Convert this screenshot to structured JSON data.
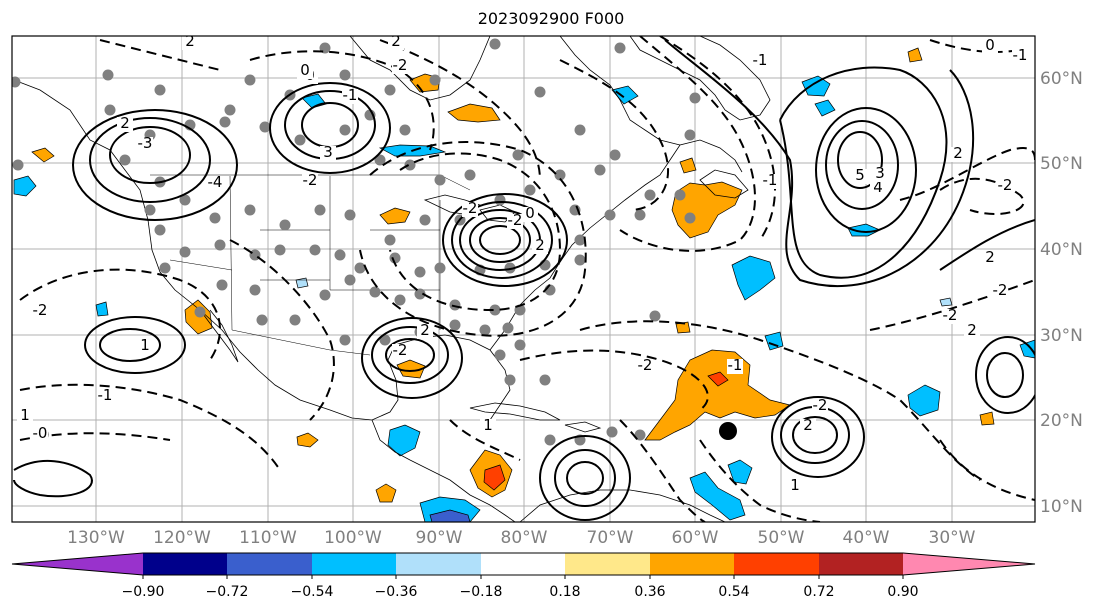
{
  "title": "2023092900 F000",
  "longitude_labels": [
    "130°W",
    "120°W",
    "110°W",
    "100°W",
    "90°W",
    "80°W",
    "70°W",
    "60°W",
    "50°W",
    "40°W",
    "30°W"
  ],
  "latitude_labels": [
    "60°N",
    "50°N",
    "40°N",
    "30°N",
    "20°N",
    "10°N"
  ],
  "colorbar": {
    "tick_labels": [
      "−0.90",
      "−0.72",
      "−0.54",
      "−0.36",
      "−0.18",
      "0.18",
      "0.36",
      "0.54",
      "0.72",
      "0.90"
    ],
    "colors": [
      "#9932cc",
      "#00008b",
      "#3a5fcd",
      "#00bfff",
      "#b0e0fa",
      "#ffffff",
      "#ffe88a",
      "#ffa500",
      "#ff4000",
      "#b22222",
      "#ff88b0"
    ]
  },
  "contour_labels": [
    "2",
    "2",
    "0",
    "-1",
    "-2",
    "-3",
    "2",
    "3",
    "-4",
    "-2",
    "-2",
    "2",
    "-2",
    "0",
    "-1",
    "5",
    "4",
    "3",
    "-1",
    "0",
    "2",
    "-2",
    "2",
    "2",
    "1",
    "-2",
    "-1",
    "-0",
    "-1",
    "0",
    "2",
    "1",
    "-2",
    "-2",
    "-1",
    "1",
    "2",
    "-2",
    "-0",
    "-2",
    "1",
    "-2"
  ],
  "colors": {
    "grid": "#b0b0b0",
    "station_dot": "#808080",
    "coast": "#000000"
  }
}
